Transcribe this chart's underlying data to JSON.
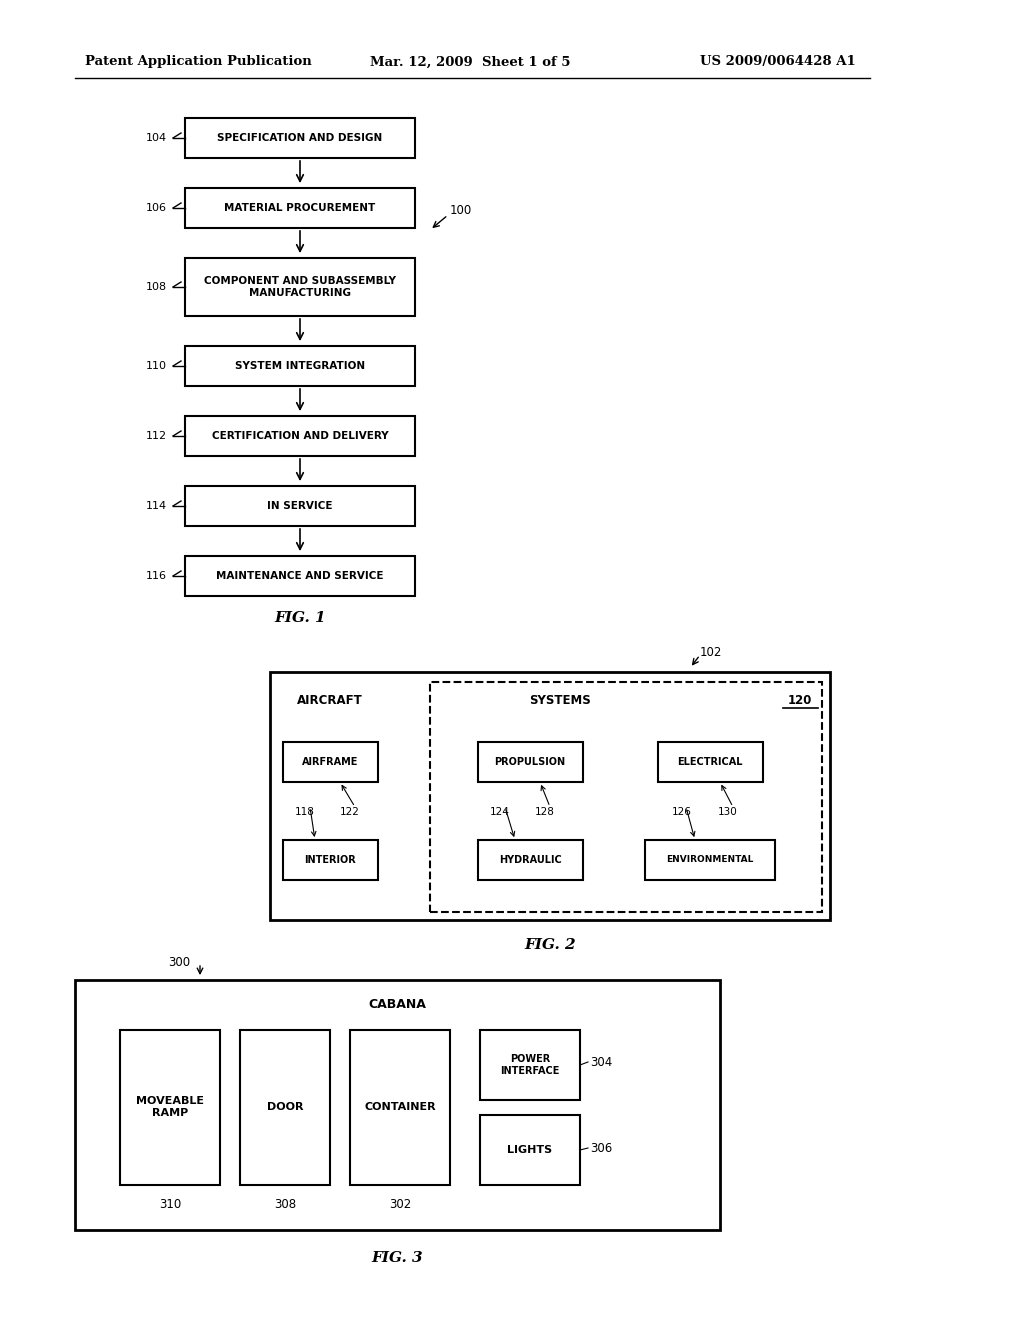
{
  "bg_color": "#ffffff",
  "header_left": "Patent Application Publication",
  "header_mid": "Mar. 12, 2009  Sheet 1 of 5",
  "header_right": "US 2009/0064428 A1",
  "fig1_label": "FIG. 1",
  "fig2_label": "FIG. 2",
  "fig3_label": "FIG. 3"
}
